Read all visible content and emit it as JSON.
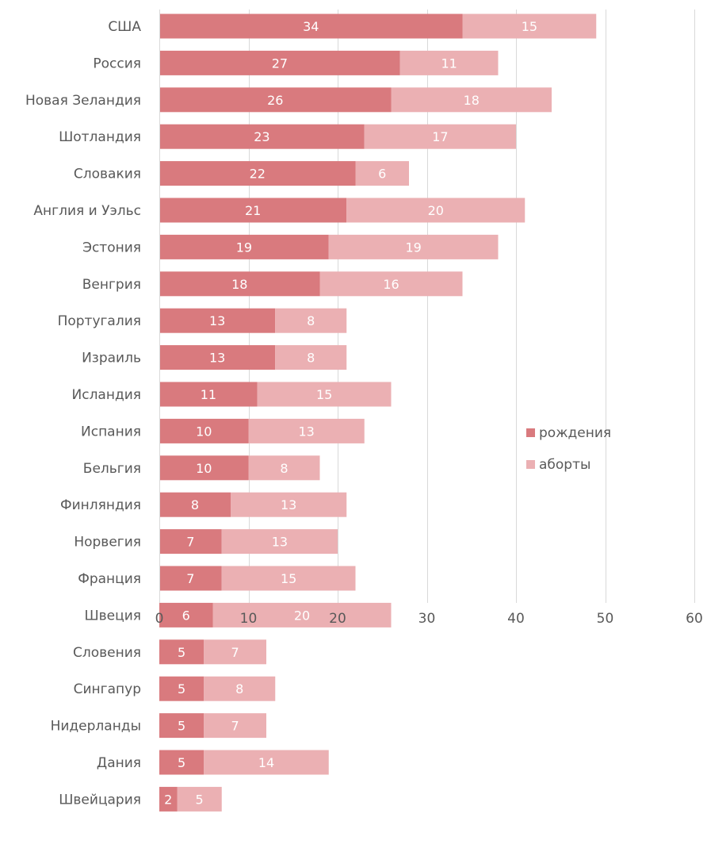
{
  "chart_data": {
    "type": "bar",
    "orientation": "horizontal",
    "stacked": true,
    "categories": [
      "США",
      "Россия",
      "Новая Зеландия",
      "Шотландия",
      "Словакия",
      "Англия и Уэльс",
      "Эстония",
      "Венгрия",
      "Португалия",
      "Израиль",
      "Исландия",
      "Испания",
      "Бельгия",
      "Финляндия",
      "Норвегия",
      "Франция",
      "Швеция",
      "Словения",
      "Сингапур",
      "Нидерланды",
      "Дания",
      "Швейцария"
    ],
    "series": [
      {
        "name": "рождения",
        "color": "#d97a7e",
        "values": [
          34,
          27,
          26,
          23,
          22,
          21,
          19,
          18,
          13,
          13,
          11,
          10,
          10,
          8,
          7,
          7,
          6,
          5,
          5,
          5,
          5,
          2
        ]
      },
      {
        "name": "аборты",
        "color": "#ebb0b3",
        "values": [
          15,
          11,
          18,
          17,
          6,
          20,
          19,
          16,
          8,
          8,
          15,
          13,
          8,
          13,
          13,
          15,
          20,
          7,
          8,
          7,
          14,
          5
        ]
      }
    ],
    "xlim": [
      0,
      60
    ],
    "xticks": [
      0,
      10,
      20,
      30,
      40,
      50,
      60
    ],
    "grid": true,
    "legend": "right",
    "data_labels": true
  }
}
